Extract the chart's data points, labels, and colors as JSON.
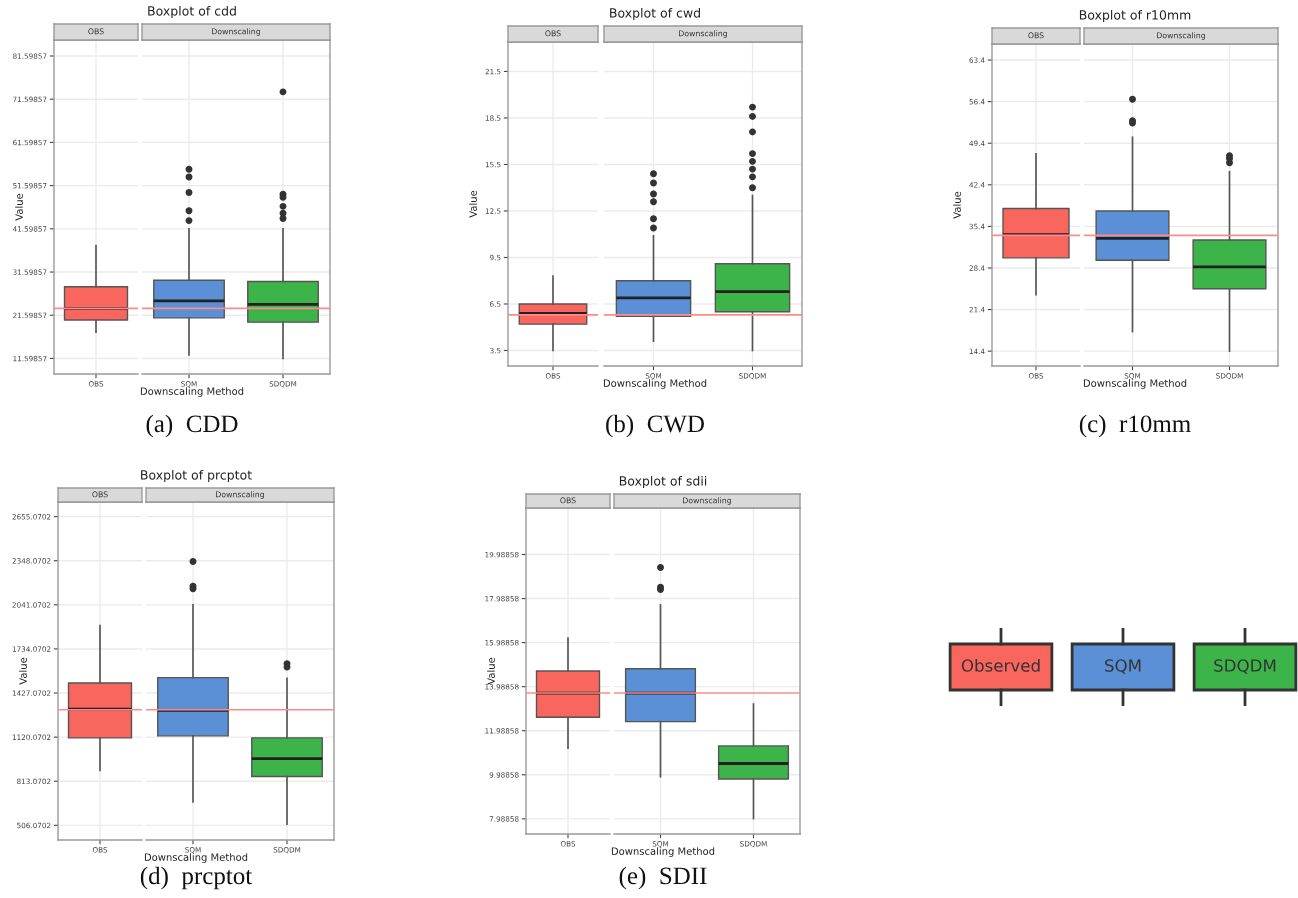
{
  "chart_data": [
    {
      "type": "box",
      "title": "Boxplot of cdd",
      "xlabel": "Downscaling Method",
      "ylabel": "Value",
      "categories": [
        "OBS",
        "SQM",
        "SDQDM"
      ],
      "colors": [
        "#f8665e",
        "#5b8fd6",
        "#3cb44a"
      ],
      "grid": true,
      "boxes": [
        {
          "low": 17.7,
          "q1": 20.5,
          "median": 23.2,
          "q3": 28.2,
          "high": 37.7
        },
        {
          "low": 12.4,
          "q1": 21.0,
          "median": 24.9,
          "q3": 29.7,
          "high": 41.6,
          "outliers": [
            43.5,
            45.8,
            50.0,
            53.6,
            55.4
          ]
        },
        {
          "low": 11.6,
          "q1": 20.0,
          "median": 24.1,
          "q3": 29.4,
          "high": 41.6,
          "outliers": [
            44.0,
            45.2,
            46.8,
            48.9,
            49.6,
            73.3
          ]
        }
      ],
      "ylim": [
        8.0,
        85.3
      ],
      "yticks": [
        11.59857,
        21.59857,
        31.59857,
        41.59857,
        51.59857,
        61.59857,
        71.59857,
        81.59857
      ],
      "ref_lines": [
        {
          "axis": "y",
          "value": 23.2,
          "color": "#ff8a8a"
        }
      ],
      "annotations": [
        "OBS",
        "Downscaling",
        "(a)  CDD"
      ]
    },
    {
      "type": "box",
      "title": "Boxplot of cwd",
      "xlabel": "Downscaling Method",
      "ylabel": "Value",
      "categories": [
        "OBS",
        "SQM",
        "SDQDM"
      ],
      "colors": [
        "#f8665e",
        "#5b8fd6",
        "#3cb44a"
      ],
      "grid": true,
      "boxes": [
        {
          "low": 3.5,
          "q1": 5.2,
          "median": 5.9,
          "q3": 6.5,
          "high": 8.3
        },
        {
          "low": 4.1,
          "q1": 5.7,
          "median": 6.9,
          "q3": 8.0,
          "high": 10.9,
          "outliers": [
            11.4,
            12.0,
            13.1,
            13.6,
            14.3,
            14.9
          ]
        },
        {
          "low": 3.5,
          "q1": 6.0,
          "median": 7.3,
          "q3": 9.1,
          "high": 13.5,
          "outliers": [
            14.0,
            14.7,
            15.2,
            15.7,
            16.2,
            17.6,
            18.6,
            19.2
          ]
        }
      ],
      "ylim": [
        2.5,
        23.4
      ],
      "yticks": [
        3.5,
        6.5,
        9.5,
        12.5,
        15.5,
        18.5,
        21.5
      ],
      "ref_lines": [
        {
          "axis": "y",
          "value": 5.8,
          "color": "#ff8a8a"
        }
      ],
      "annotations": [
        "OBS",
        "Downscaling",
        "(b)  CWD"
      ]
    },
    {
      "type": "box",
      "title": "Boxplot of r10mm",
      "xlabel": "Downscaling Method",
      "ylabel": "Value",
      "categories": [
        "OBS",
        "SQM",
        "SDQDM"
      ],
      "colors": [
        "#f8665e",
        "#5b8fd6",
        "#3cb44a"
      ],
      "grid": true,
      "boxes": [
        {
          "low": 23.9,
          "q1": 30.1,
          "median": 34.0,
          "q3": 38.4,
          "high": 47.6
        },
        {
          "low": 17.7,
          "q1": 29.7,
          "median": 33.4,
          "q3": 38.0,
          "high": 50.4,
          "outliers": [
            52.8,
            53.2,
            56.8
          ]
        },
        {
          "low": 14.4,
          "q1": 24.9,
          "median": 28.6,
          "q3": 33.1,
          "high": 44.6,
          "outliers": [
            46.1,
            46.8,
            47.3
          ]
        }
      ],
      "ylim": [
        11.9,
        66.1
      ],
      "yticks": [
        14.4,
        21.4,
        28.4,
        35.4,
        42.4,
        49.4,
        56.4,
        63.4
      ],
      "ref_lines": [
        {
          "axis": "y",
          "value": 33.9,
          "color": "#ff8a8a"
        }
      ],
      "annotations": [
        "OBS",
        "Downscaling",
        "(c)  r10mm"
      ]
    },
    {
      "type": "box",
      "title": "Boxplot of prcptot",
      "xlabel": "Downscaling Method",
      "ylabel": "Value",
      "categories": [
        "OBS",
        "SQM",
        "SDQDM"
      ],
      "colors": [
        "#f8665e",
        "#5b8fd6",
        "#3cb44a"
      ],
      "grid": true,
      "boxes": [
        {
          "low": 888,
          "q1": 1115,
          "median": 1315,
          "q3": 1497,
          "high": 1897
        },
        {
          "low": 669,
          "q1": 1129,
          "median": 1306,
          "q3": 1534,
          "high": 2041,
          "outliers": [
            2153,
            2171,
            2343
          ]
        },
        {
          "low": 515,
          "q1": 846,
          "median": 971,
          "q3": 1115,
          "high": 1529,
          "outliers": [
            1608,
            1632
          ]
        }
      ],
      "ylim": [
        404,
        2757
      ],
      "yticks": [
        506.0702,
        813.0702,
        1120.0702,
        1427.0702,
        1734.0702,
        2041.0702,
        2348.0702,
        2655.0702
      ],
      "ref_lines": [
        {
          "axis": "y",
          "value": 1311,
          "color": "#ff8a8a"
        }
      ],
      "annotations": [
        "OBS",
        "Downscaling",
        "(d)  prcptot"
      ]
    },
    {
      "type": "box",
      "title": "Boxplot of sdii",
      "xlabel": "Downscaling Method",
      "ylabel": "Value",
      "categories": [
        "OBS",
        "SQM",
        "SDQDM"
      ],
      "colors": [
        "#f8665e",
        "#5b8fd6",
        "#3cb44a"
      ],
      "grid": true,
      "boxes": [
        {
          "low": 11.2,
          "q1": 12.6,
          "median": 13.7,
          "q3": 14.7,
          "high": 16.2
        },
        {
          "low": 9.9,
          "q1": 12.4,
          "median": 13.7,
          "q3": 14.8,
          "high": 17.7,
          "outliers": [
            18.4,
            18.5,
            19.4
          ]
        },
        {
          "low": 8.0,
          "q1": 9.8,
          "median": 10.5,
          "q3": 11.3,
          "high": 13.2
        }
      ],
      "ylim": [
        7.3,
        22.1
      ],
      "yticks": [
        7.98858,
        9.98858,
        11.98858,
        13.98858,
        15.98858,
        17.98858,
        19.98858
      ],
      "ref_lines": [
        {
          "axis": "y",
          "value": 13.7,
          "color": "#ff8a8a"
        }
      ],
      "annotations": [
        "OBS",
        "Downscaling",
        "(e)  SDII"
      ]
    },
    {
      "type": "other",
      "categories": [
        "Observed",
        "SQM",
        "SDQDM"
      ],
      "colors": [
        "#f8665e",
        "#5b8fd6",
        "#3cb44a"
      ]
    }
  ]
}
